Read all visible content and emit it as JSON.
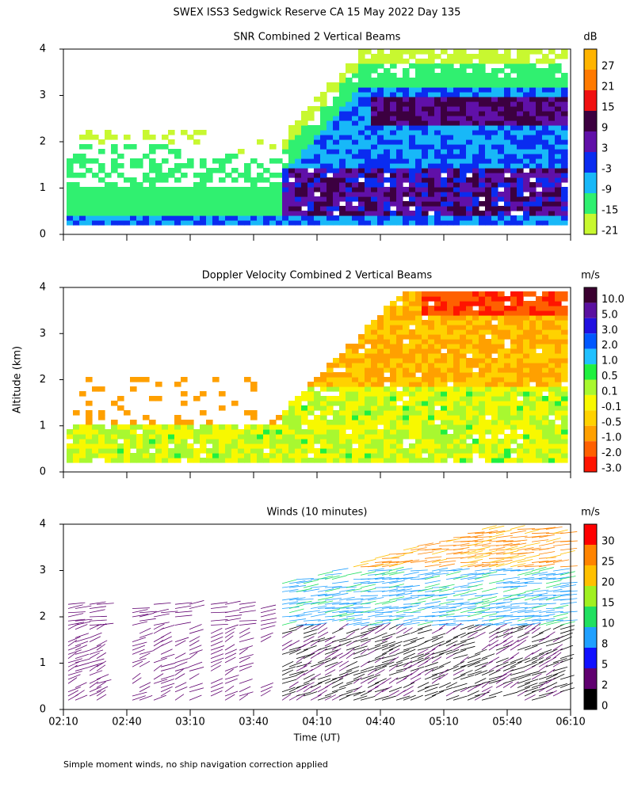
{
  "title": "SWEX ISS3 Sedgwick Reserve CA  15 May 2022 Day 135",
  "footnote": "Simple moment winds, no ship navigation correction applied",
  "chart_data": [
    {
      "type": "contour",
      "title": "SNR Combined 2 Vertical Beams",
      "colorbar_label": "dB",
      "ylim": [
        0,
        4
      ],
      "yticks": [
        0,
        1,
        2,
        3,
        4
      ],
      "cticks": [
        27,
        21,
        15,
        9,
        3,
        -3,
        -9,
        -15,
        -21
      ],
      "colors": [
        "#ffb400",
        "#ff7a00",
        "#f01010",
        "#3c0040",
        "#6010a8",
        "#0a2cf0",
        "#18b8f8",
        "#30f070",
        "#c8f830"
      ]
    },
    {
      "type": "contour",
      "title": "Doppler Velocity Combined 2 Vertical Beams",
      "colorbar_label": "m/s",
      "ylabel": "Altitude (km)",
      "ylim": [
        0,
        4
      ],
      "yticks": [
        0,
        1,
        2,
        3,
        4
      ],
      "cticks": [
        {
          "value": 10,
          "label": "10.0"
        },
        {
          "value": 5,
          "label": "5.0"
        },
        {
          "value": 3,
          "label": "3.0"
        },
        {
          "value": 2,
          "label": "2.0"
        },
        {
          "value": 1,
          "label": "1.0"
        },
        0.5,
        0.1,
        -0.1,
        -0.5,
        {
          "value": -1,
          "label": "-1.0"
        },
        {
          "value": -2,
          "label": "-2.0"
        },
        {
          "value": -3,
          "label": "-3.0"
        }
      ],
      "colors": [
        "#3a0030",
        "#5a10a0",
        "#2010e0",
        "#0058ff",
        "#20c0ff",
        "#20f040",
        "#a8f830",
        "#f8f800",
        "#ffd200",
        "#ffa000",
        "#ff6000",
        "#ff1400"
      ]
    },
    {
      "type": "barbs",
      "title": "Winds (10 minutes)",
      "colorbar_label": "m/s",
      "xlabel": "Time (UT)",
      "ylim": [
        0,
        4
      ],
      "yticks": [
        0,
        1,
        2,
        3,
        4
      ],
      "xlim": [
        130,
        370
      ],
      "xticks": [
        {
          "value": 130,
          "label": "02:10"
        },
        {
          "value": 160,
          "label": "02:40"
        },
        {
          "value": 190,
          "label": "03:10"
        },
        {
          "value": 220,
          "label": "03:40"
        },
        {
          "value": 250,
          "label": "04:10"
        },
        {
          "value": 280,
          "label": "04:40"
        },
        {
          "value": 310,
          "label": "05:10"
        },
        {
          "value": 340,
          "label": "05:40"
        },
        {
          "value": 370,
          "label": "06:10"
        }
      ],
      "cticks": [
        30,
        25,
        20,
        15,
        10,
        8,
        5,
        2,
        0
      ],
      "colors": [
        "#ff0000",
        "#ff8400",
        "#ffc000",
        "#a0f020",
        "#20e060",
        "#20a0ff",
        "#1010ff",
        "#600070",
        "#000000"
      ]
    }
  ]
}
